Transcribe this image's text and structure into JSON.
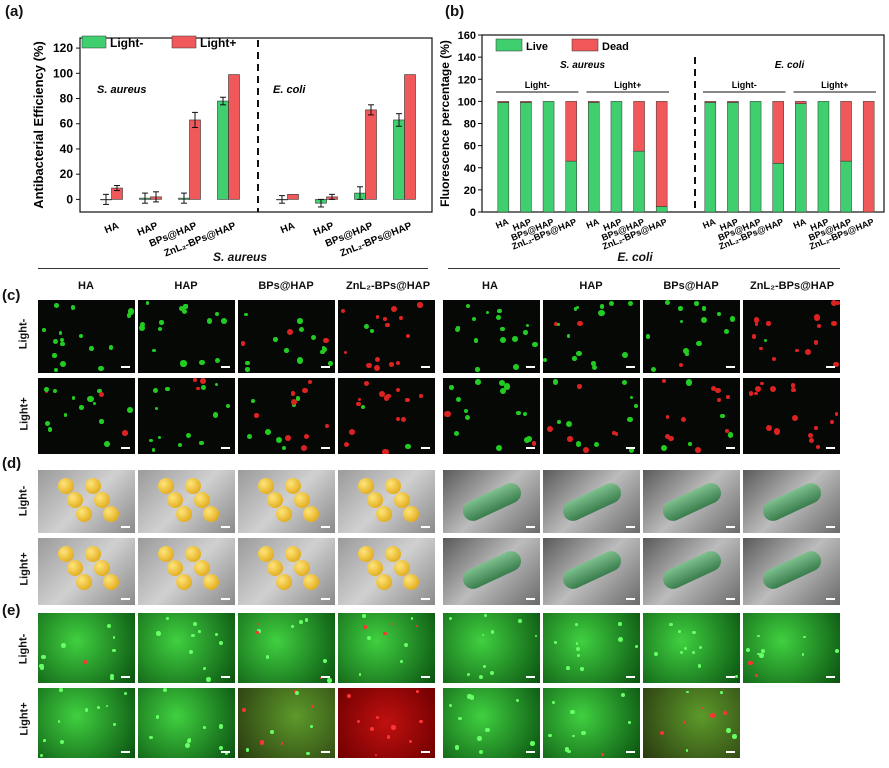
{
  "panel_labels": {
    "a": "(a)",
    "b": "(b)",
    "c": "(c)",
    "d": "(d)",
    "e": "(e)"
  },
  "chart_data": [
    {
      "type": "bar",
      "ylabel": "Antibacterial Efficiency (%)",
      "ylim": [
        -10,
        128
      ],
      "yticks": [
        0,
        20,
        40,
        60,
        80,
        100,
        120
      ],
      "legend_position": "top-left",
      "groups": [
        {
          "title": "S. aureus",
          "categories": [
            "HA",
            "HAP",
            "BPs@HAP",
            "ZnL₂-BPs@HAP"
          ]
        },
        {
          "title": "E. coli",
          "categories": [
            "HA",
            "HAP",
            "BPs@HAP",
            "ZnL₂-BPs@HAP"
          ]
        }
      ],
      "series": [
        {
          "name": "Light-",
          "color": "#3fcf6f",
          "values": [
            0,
            1,
            1,
            78,
            0,
            -3,
            5,
            63
          ],
          "errors": [
            4,
            4,
            4,
            3,
            3,
            3,
            5,
            5
          ]
        },
        {
          "name": "Light+",
          "color": "#f0585a",
          "values": [
            9,
            2,
            63,
            99,
            4,
            2,
            71,
            99
          ],
          "errors": [
            2,
            4,
            6,
            0,
            0,
            2,
            4,
            0
          ]
        }
      ]
    },
    {
      "type": "bar",
      "stacked": true,
      "ylabel": "Fluorescence percentage (%)",
      "ylim": [
        0,
        160
      ],
      "yticks": [
        0,
        20,
        40,
        60,
        80,
        100,
        120,
        140,
        160
      ],
      "legend_position": "top-left",
      "groups": [
        {
          "title": "S. aureus",
          "subgroups": [
            "Light-",
            "Light+"
          ],
          "categories": [
            "HA",
            "HAP",
            "BPs@HAP",
            "ZnL₂-BPs@HAP",
            "HA",
            "HAP",
            "BPs@HAP",
            "ZnL₂-BPs@HAP"
          ]
        },
        {
          "title": "E. coli",
          "subgroups": [
            "Light-",
            "Light+"
          ],
          "categories": [
            "HA",
            "HAP",
            "BPs@HAP",
            "ZnL₂-BPs@HAP",
            "HA",
            "HAP",
            "BPs@HAP",
            "ZnL₂-BPs@HAP"
          ]
        }
      ],
      "series": [
        {
          "name": "Live",
          "color": "#3fcf6f",
          "values": [
            99,
            99,
            100,
            46,
            99,
            100,
            55,
            5,
            99,
            99,
            100,
            44,
            98,
            100,
            46,
            0
          ]
        },
        {
          "name": "Dead",
          "color": "#f0585a",
          "values": [
            1,
            1,
            0,
            54,
            1,
            0,
            45,
            95,
            1,
            1,
            0,
            56,
            2,
            0,
            54,
            100
          ]
        }
      ]
    }
  ],
  "organisms": {
    "left": "S. aureus",
    "right": "E. coli"
  },
  "column_headers": [
    "HA",
    "HAP",
    "BPs@HAP",
    "ZnL₂-BPs@HAP"
  ],
  "row_labels": {
    "dark": "Light-",
    "light": "Light+"
  },
  "image_grids": {
    "c": "Live/dead fluorescence staining micrographs",
    "d": "SEM micrographs of bacteria",
    "e": "Biofilm fluorescence micrographs"
  }
}
